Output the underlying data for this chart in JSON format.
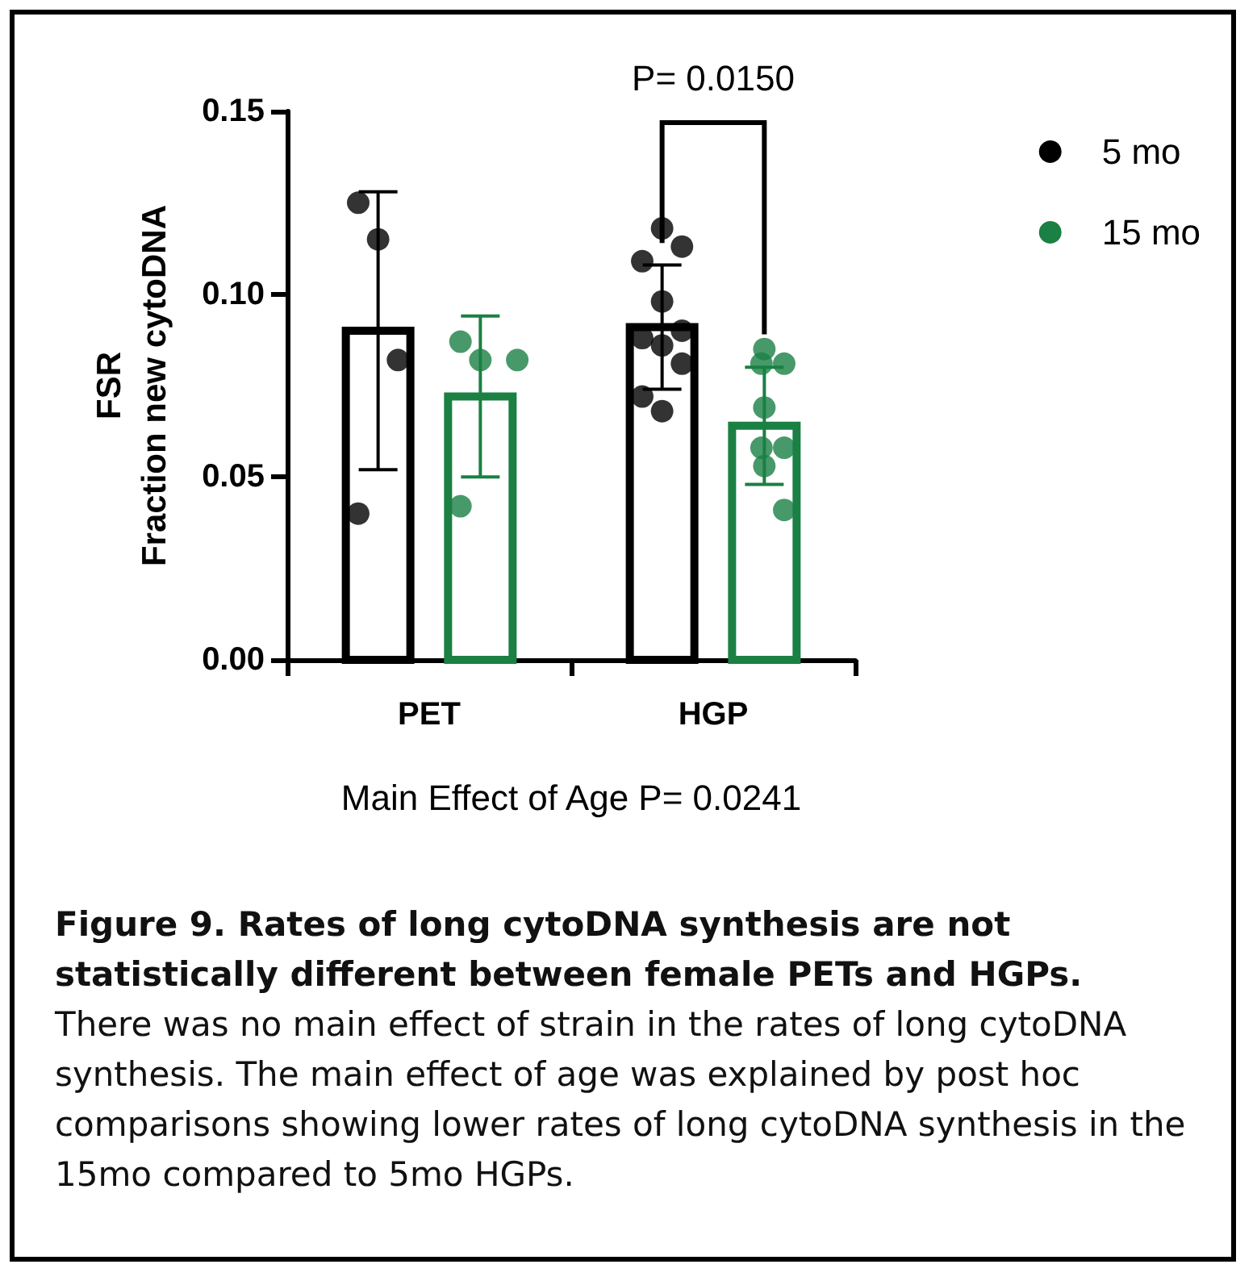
{
  "chart_data": {
    "type": "bar",
    "ylabel": "FSR\nFraction new cytoDNA",
    "categories": [
      "PET",
      "HGP"
    ],
    "series": [
      {
        "name": "5 mo",
        "color": "#000000",
        "values": [
          0.09,
          0.091
        ],
        "errors": [
          0.038,
          0.017
        ]
      },
      {
        "name": "15 mo",
        "color": "#1a8043",
        "values": [
          0.072,
          0.064
        ],
        "errors": [
          0.022,
          0.016
        ]
      },
      {
        "type": "scatter",
        "color": "#000000",
        "x": [
          "PET",
          "PET",
          "PET",
          "PET",
          "HGP",
          "HGP",
          "HGP",
          "HGP",
          "HGP",
          "HGP",
          "HGP",
          "HGP",
          "HGP",
          "HGP"
        ],
        "values": [
          0.125,
          0.115,
          0.082,
          0.04,
          0.118,
          0.113,
          0.109,
          0.098,
          0.09,
          0.088,
          0.086,
          0.081,
          0.072,
          0.068
        ]
      },
      {
        "type": "scatter",
        "color": "#1a8043",
        "x": [
          "PET",
          "PET",
          "PET",
          "PET",
          "HGP",
          "HGP",
          "HGP",
          "HGP",
          "HGP",
          "HGP",
          "HGP",
          "HGP"
        ],
        "values": [
          0.087,
          0.082,
          0.082,
          0.042,
          0.085,
          0.081,
          0.081,
          0.069,
          0.058,
          0.058,
          0.053,
          0.041
        ]
      }
    ],
    "ylim": [
      0,
      0.15
    ],
    "yticks": [
      {
        "value": 0,
        "label": "0.00"
      },
      {
        "value": 0.05,
        "label": "0.05"
      },
      {
        "value": 0.1,
        "label": "0.10"
      },
      {
        "value": 0.15,
        "label": "0.15"
      }
    ],
    "grid": false,
    "legend": "top right",
    "marker": "circle",
    "annotations": [
      "P= 0.0150",
      "Main Effect of Age P= 0.0241",
      "Figure 9. Rates of long cytoDNA synthesis are not statistically different between female PETs and HGPs.",
      "There was no main effect of strain in the rates of long cytoDNA synthesis. The main effect of age was explained by post hoc comparisons showing lower rates of long cytoDNA synthesis in the 15mo compared to 5mo HGPs."
    ]
  }
}
